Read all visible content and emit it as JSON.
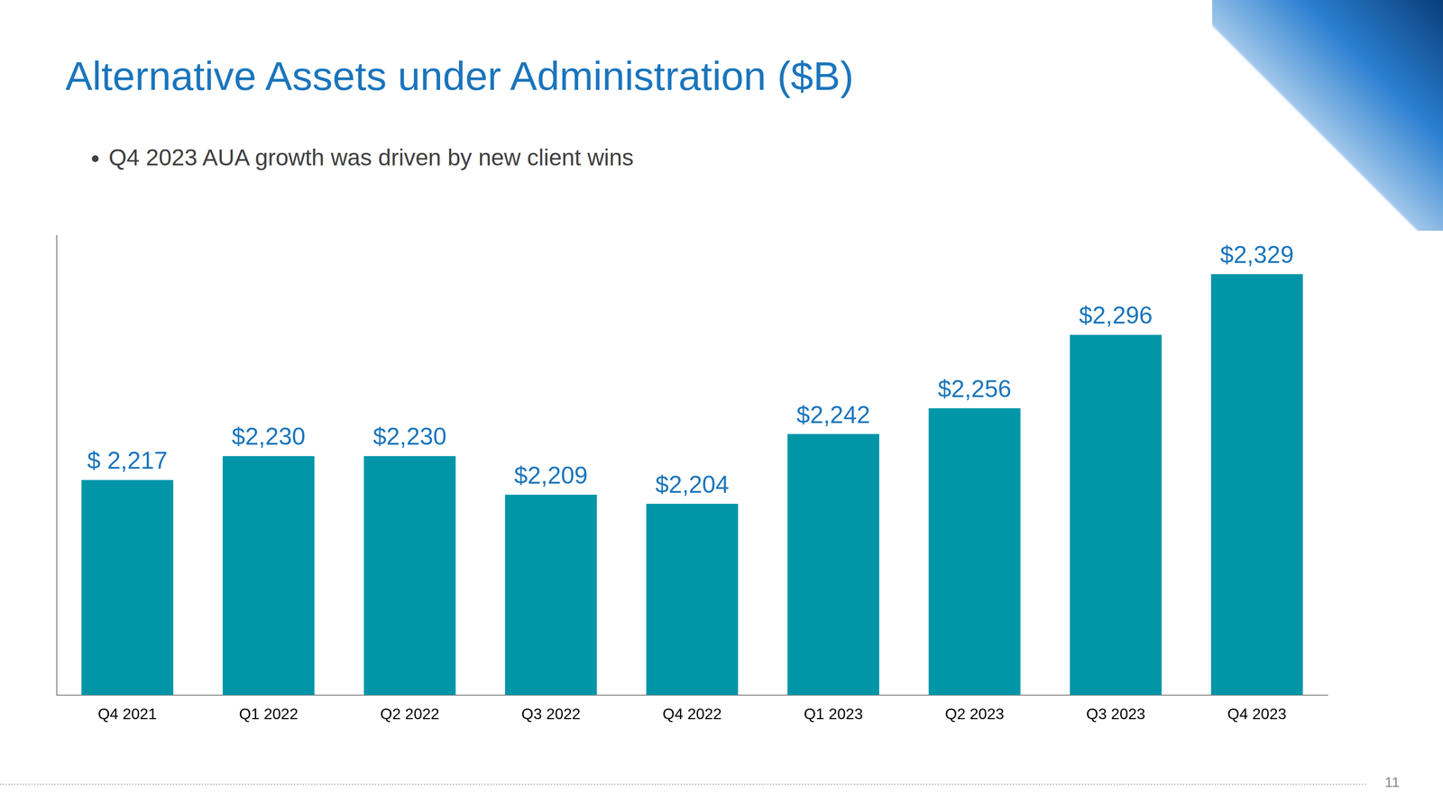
{
  "chart_data": {
    "type": "bar",
    "title": "Alternative Assets under Administration ($B)",
    "subtitle": "Q4 2023 AUA growth was driven by new client wins",
    "categories": [
      "Q4 2021",
      "Q1 2022",
      "Q2 2022",
      "Q3 2022",
      "Q4 2022",
      "Q1 2023",
      "Q2 2023",
      "Q3 2023",
      "Q4 2023"
    ],
    "values": [
      2217,
      2230,
      2230,
      2209,
      2204,
      2242,
      2256,
      2296,
      2329
    ],
    "value_labels": [
      "$ 2,217",
      "$2,230",
      "$2,230",
      "$2,209",
      "$2,204",
      "$2,242",
      "$2,256",
      "$2,296",
      "$2,329"
    ],
    "color": "#0096a8",
    "ylim": [
      2100,
      2350
    ],
    "yticks": [],
    "grid": false,
    "data_labels": true,
    "tick_labels": "x"
  },
  "footer": {
    "page_number": "11"
  }
}
